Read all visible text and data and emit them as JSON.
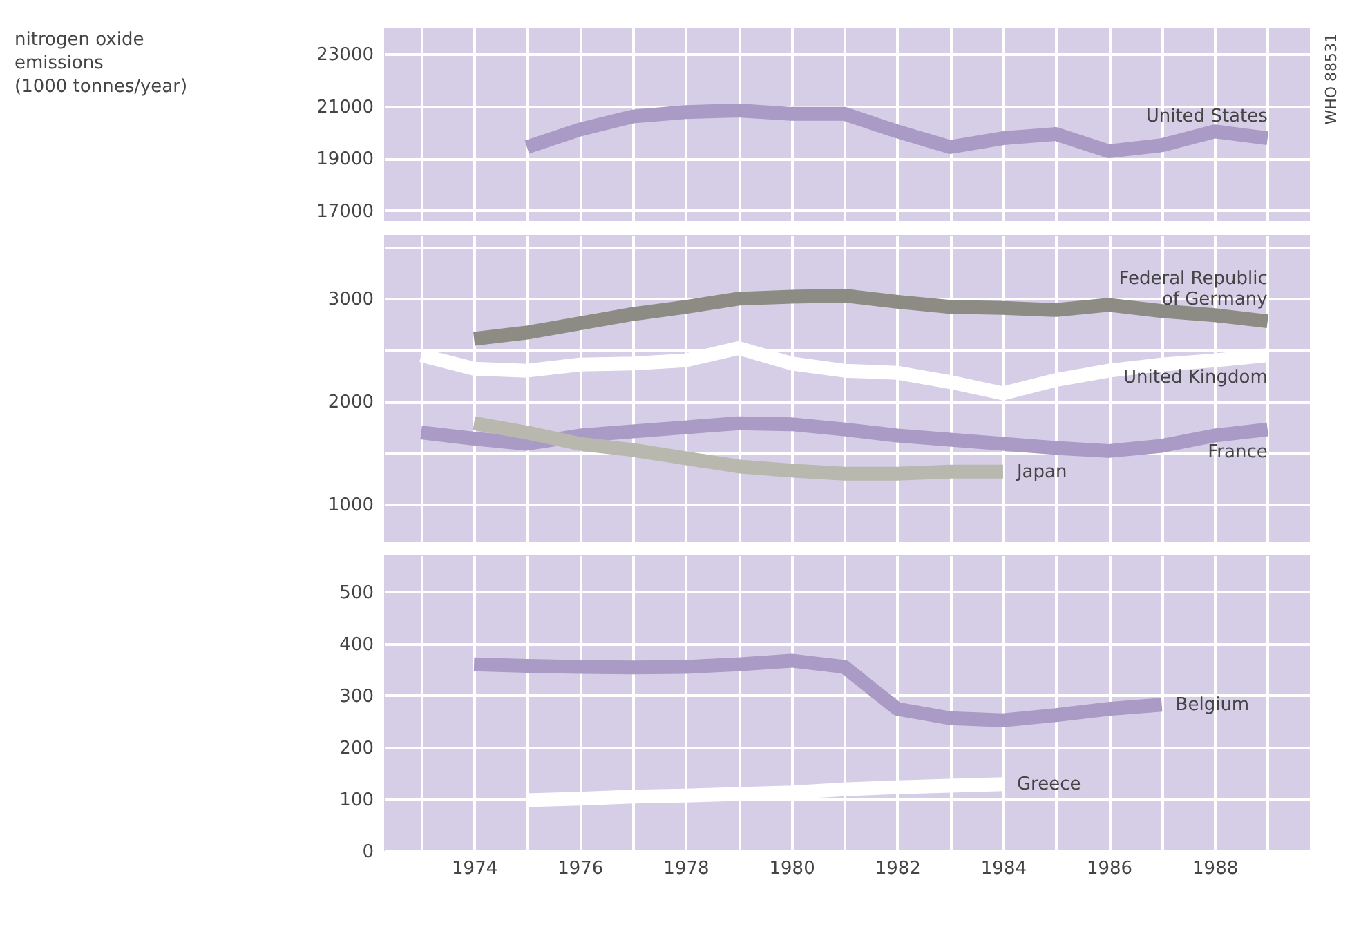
{
  "chart_data": [
    {
      "type": "line",
      "ylabel": "nitrogen oxide emissions (1000 tonnes/year)",
      "annotations": [
        "WHO 88531"
      ],
      "xlim": [
        1972.3,
        1989.8
      ],
      "ylim": [
        16600,
        24000
      ],
      "yticks": [
        17000,
        19000,
        21000,
        23000
      ],
      "xticks": [
        1973,
        1974,
        1975,
        1976,
        1977,
        1978,
        1979,
        1980,
        1981,
        1982,
        1983,
        1984,
        1985,
        1986,
        1987,
        1988,
        1989
      ],
      "grid": true,
      "tick_labels": "y",
      "series": [
        {
          "name": "United States",
          "color": "#a99ac6",
          "x": [
            1975,
            1976,
            1977,
            1978,
            1979,
            1980,
            1981,
            1982,
            1983,
            1984,
            1985,
            1986,
            1987,
            1988,
            1989
          ],
          "values": [
            19430,
            20100,
            20600,
            20770,
            20830,
            20700,
            20700,
            20030,
            19430,
            19770,
            19930,
            19270,
            19500,
            20030,
            19770
          ]
        }
      ]
    },
    {
      "type": "line",
      "xlim": [
        1972.3,
        1989.8
      ],
      "ylim": [
        640,
        3620
      ],
      "yticks": [
        1000,
        {
          "value": 1500,
          "label": null
        },
        2000,
        {
          "value": 2500,
          "label": null
        },
        3000,
        {
          "value": 3500,
          "label": null
        }
      ],
      "xticks": [
        1973,
        1974,
        1975,
        1976,
        1977,
        1978,
        1979,
        1980,
        1981,
        1982,
        1983,
        1984,
        1985,
        1986,
        1987,
        1988,
        1989
      ],
      "grid": true,
      "tick_labels": "y",
      "series": [
        {
          "name": "Federal Republic of Germany",
          "color": "#8c8c84",
          "x": [
            1974,
            1975,
            1976,
            1977,
            1978,
            1979,
            1980,
            1981,
            1982,
            1983,
            1984,
            1985,
            1986,
            1987,
            1988,
            1989
          ],
          "values": [
            2610,
            2670,
            2760,
            2850,
            2920,
            3000,
            3020,
            3030,
            2970,
            2920,
            2910,
            2890,
            2940,
            2880,
            2840,
            2780
          ]
        },
        {
          "name": "United Kingdom",
          "color": "#ffffff",
          "x": [
            1973,
            1974,
            1975,
            1976,
            1977,
            1978,
            1979,
            1980,
            1981,
            1982,
            1983,
            1984,
            1985,
            1986,
            1987,
            1988,
            1989
          ],
          "values": [
            2450,
            2320,
            2300,
            2360,
            2370,
            2400,
            2520,
            2370,
            2300,
            2280,
            2190,
            2080,
            2210,
            2300,
            2360,
            2400,
            2450
          ]
        },
        {
          "name": "France",
          "color": "#a99ac6",
          "x": [
            1973,
            1974,
            1975,
            1976,
            1977,
            1978,
            1979,
            1980,
            1981,
            1982,
            1983,
            1984,
            1985,
            1986,
            1987,
            1988,
            1989
          ],
          "values": [
            1700,
            1640,
            1590,
            1670,
            1710,
            1750,
            1790,
            1780,
            1730,
            1670,
            1630,
            1590,
            1550,
            1520,
            1570,
            1670,
            1730
          ]
        },
        {
          "name": "Japan",
          "color": "#b8b8ae",
          "x": [
            1974,
            1975,
            1976,
            1977,
            1978,
            1979,
            1980,
            1981,
            1982,
            1983,
            1984
          ],
          "values": [
            1790,
            1700,
            1590,
            1530,
            1450,
            1370,
            1330,
            1300,
            1300,
            1320,
            1320
          ]
        }
      ]
    },
    {
      "type": "line",
      "xlim": [
        1972.3,
        1989.8
      ],
      "ylim": [
        0,
        570
      ],
      "yticks": [
        0,
        100,
        200,
        300,
        400,
        500
      ],
      "xticks": [
        {
          "value": 1973,
          "label": null
        },
        1974,
        {
          "value": 1975,
          "label": null
        },
        1976,
        {
          "value": 1977,
          "label": null
        },
        1978,
        {
          "value": 1979,
          "label": null
        },
        1980,
        {
          "value": 1981,
          "label": null
        },
        1982,
        {
          "value": 1983,
          "label": null
        },
        1984,
        {
          "value": 1985,
          "label": null
        },
        1986,
        {
          "value": 1987,
          "label": null
        },
        1988,
        {
          "value": 1989,
          "label": null
        }
      ],
      "grid": true,
      "series": [
        {
          "name": "Belgium",
          "color": "#a99ac6",
          "x": [
            1974,
            1975,
            1976,
            1977,
            1978,
            1979,
            1980,
            1981,
            1982,
            1983,
            1984,
            1985,
            1986,
            1987
          ],
          "values": [
            360,
            357,
            355,
            354,
            355,
            360,
            367,
            355,
            274,
            256,
            252,
            262,
            274,
            282
          ]
        },
        {
          "name": "Greece",
          "color": "#ffffff",
          "x": [
            1975,
            1976,
            1977,
            1978,
            1979,
            1980,
            1981,
            1982,
            1983,
            1984
          ],
          "values": [
            98,
            101,
            105,
            107,
            110,
            113,
            119,
            123,
            126,
            129
          ]
        }
      ]
    }
  ]
}
